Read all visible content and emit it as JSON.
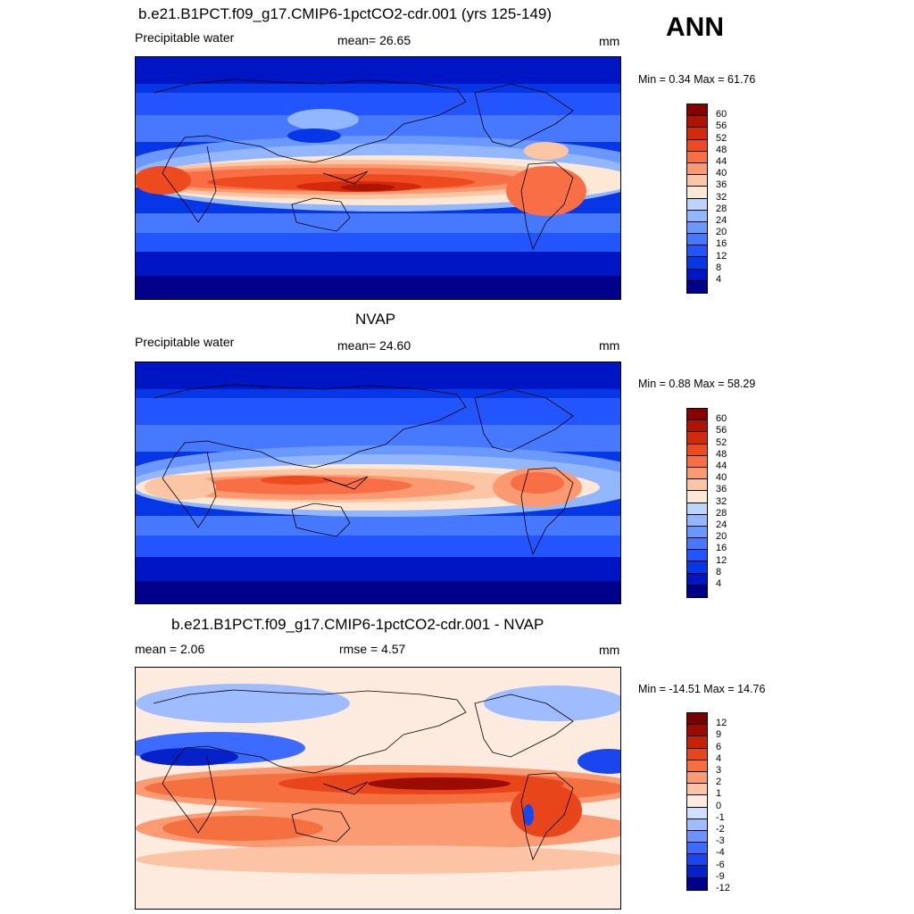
{
  "season": "ANN",
  "colors": {
    "pw_levels": [
      "#00008b",
      "#0015c3",
      "#0537e6",
      "#2355ff",
      "#4679ff",
      "#6b98ff",
      "#93b7ff",
      "#bcd5ff",
      "#fde8d6",
      "#fcc5a3",
      "#fb9a70",
      "#f86e45",
      "#ee4a20",
      "#d42a0c",
      "#ad1403",
      "#860000"
    ],
    "diff_levels": [
      "#00008b",
      "#0522c8",
      "#1a46f0",
      "#3d6aff",
      "#6b93ff",
      "#9fbcff",
      "#cfe0ff",
      "#fdebe0",
      "#fcc4a5",
      "#fa9b73",
      "#f5703f",
      "#e8461a",
      "#c52206",
      "#9a0b00",
      "#780000"
    ]
  },
  "panels": [
    {
      "id": "model",
      "title": "b.e21.B1PCT.f09_g17.CMIP6-1pctCO2-cdr.001 (yrs 125-149)",
      "left_label": "Precipitable water",
      "center_label": "mean=  26.65",
      "right_label": "mm",
      "minmax": "Min =   0.34 Max =  61.76",
      "colorbar_labels": [
        "60",
        "56",
        "52",
        "48",
        "44",
        "40",
        "36",
        "32",
        "28",
        "24",
        "20",
        "16",
        "12",
        "8",
        "4"
      ]
    },
    {
      "id": "obs",
      "title": "NVAP",
      "left_label": "Precipitable water",
      "center_label": "mean=  24.60",
      "right_label": "mm",
      "minmax": "Min =   0.88 Max =  58.29",
      "colorbar_labels": [
        "60",
        "56",
        "52",
        "48",
        "44",
        "40",
        "36",
        "32",
        "28",
        "24",
        "20",
        "16",
        "12",
        "8",
        "4"
      ]
    },
    {
      "id": "diff",
      "title": "b.e21.B1PCT.f09_g17.CMIP6-1pctCO2-cdr.001 - NVAP",
      "left_label": "mean =   2.06",
      "center_label": "rmse =   4.57",
      "right_label": "mm",
      "minmax": "Min = -14.51 Max =  14.76",
      "colorbar_labels": [
        "12",
        "9",
        "6",
        "4",
        "3",
        "2",
        "1",
        "0",
        "-1",
        "-2",
        "-3",
        "-4",
        "-6",
        "-9",
        "-12"
      ]
    }
  ]
}
